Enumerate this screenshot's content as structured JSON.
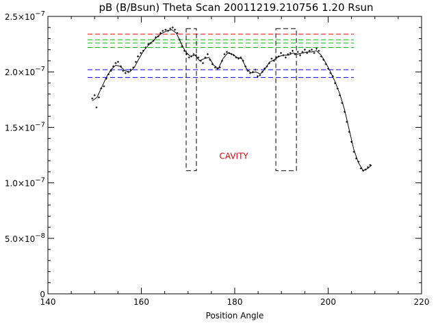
{
  "chart_data": {
    "type": "scatter",
    "title": "pB (B/Bsun) Theta Scan 20011219.210756 1.20 Rsun",
    "xlabel": "Position Angle",
    "ylabel": "",
    "xlim": [
      140,
      220
    ],
    "ylim": [
      0,
      2.5e-07
    ],
    "x_ticks": [
      140,
      160,
      180,
      200,
      220
    ],
    "x_tick_labels": [
      "140",
      "160",
      "180",
      "200",
      "220"
    ],
    "x_minor_step": 5,
    "y_ticks": [
      0,
      5e-08,
      1e-07,
      1.5e-07,
      2e-07,
      2.5e-07
    ],
    "y_tick_labels": [
      {
        "mant": "0",
        "exp": ""
      },
      {
        "mant": "5.0×10",
        "exp": "−8"
      },
      {
        "mant": "1.0×10",
        "exp": "−7"
      },
      {
        "mant": "1.5×10",
        "exp": "−7"
      },
      {
        "mant": "2.0×10",
        "exp": "−7"
      },
      {
        "mant": "2.5×10",
        "exp": "−7"
      }
    ],
    "y_minor_step": 1e-08,
    "grid": false,
    "colors": {
      "axes": "#000000",
      "red": "#ff0000",
      "green": "#00bb00",
      "blue": "#0000ff",
      "annotation": "#dd0000"
    },
    "annotation": {
      "text": "CAVITY",
      "x": 179.8,
      "y": 1.24e-07
    },
    "points": [
      [
        149.5,
        1.76e-07
      ],
      [
        150.0,
        1.79e-07
      ],
      [
        150.4,
        1.68e-07
      ],
      [
        150.9,
        1.77e-07
      ],
      [
        151.4,
        1.85e-07
      ],
      [
        152.0,
        1.87e-07
      ],
      [
        152.5,
        1.94e-07
      ],
      [
        153.0,
        1.98e-07
      ],
      [
        153.5,
        2.01e-07
      ],
      [
        154.0,
        2.05e-07
      ],
      [
        154.5,
        2.08e-07
      ],
      [
        155.0,
        2.09e-07
      ],
      [
        155.6,
        2.05e-07
      ],
      [
        156.1,
        2.01e-07
      ],
      [
        156.6,
        1.99e-07
      ],
      [
        157.2,
        2e-07
      ],
      [
        157.7,
        2.02e-07
      ],
      [
        158.3,
        2.04e-07
      ],
      [
        158.8,
        2.09e-07
      ],
      [
        159.3,
        2.14e-07
      ],
      [
        159.9,
        2.17e-07
      ],
      [
        160.4,
        2.19e-07
      ],
      [
        160.9,
        2.22e-07
      ],
      [
        161.5,
        2.25e-07
      ],
      [
        162.0,
        2.26e-07
      ],
      [
        162.6,
        2.28e-07
      ],
      [
        163.1,
        2.31e-07
      ],
      [
        163.6,
        2.32e-07
      ],
      [
        164.1,
        2.35e-07
      ],
      [
        164.6,
        2.37e-07
      ],
      [
        165.2,
        2.38e-07
      ],
      [
        165.7,
        2.37e-07
      ],
      [
        166.2,
        2.39e-07
      ],
      [
        166.7,
        2.4e-07
      ],
      [
        167.2,
        2.38e-07
      ],
      [
        167.7,
        2.35e-07
      ],
      [
        168.2,
        2.29e-07
      ],
      [
        168.7,
        2.23e-07
      ],
      [
        169.2,
        2.19e-07
      ],
      [
        169.7,
        2.16e-07
      ],
      [
        170.2,
        2.13e-07
      ],
      [
        170.7,
        2.14e-07
      ],
      [
        171.2,
        2.16e-07
      ],
      [
        171.7,
        2.15e-07
      ],
      [
        172.2,
        2.13e-07
      ],
      [
        172.7,
        2.1e-07
      ],
      [
        173.2,
        2.08e-07
      ],
      [
        173.7,
        2.13e-07
      ],
      [
        174.2,
        2.16e-07
      ],
      [
        174.7,
        2.11e-07
      ],
      [
        175.2,
        2.07e-07
      ],
      [
        175.8,
        2.04e-07
      ],
      [
        176.3,
        2.03e-07
      ],
      [
        176.8,
        2.04e-07
      ],
      [
        177.3,
        2.1e-07
      ],
      [
        177.8,
        2.16e-07
      ],
      [
        178.3,
        2.18e-07
      ],
      [
        178.8,
        2.17e-07
      ],
      [
        179.3,
        2.16e-07
      ],
      [
        179.8,
        2.15e-07
      ],
      [
        180.3,
        2.13e-07
      ],
      [
        180.8,
        2.12e-07
      ],
      [
        181.3,
        2.13e-07
      ],
      [
        181.8,
        2.1e-07
      ],
      [
        182.3,
        2.05e-07
      ],
      [
        182.8,
        2.01e-07
      ],
      [
        183.3,
        1.99e-07
      ],
      [
        183.9,
        2e-07
      ],
      [
        184.4,
        2.02e-07
      ],
      [
        184.9,
        1.96e-07
      ],
      [
        185.4,
        1.97e-07
      ],
      [
        185.9,
        2e-07
      ],
      [
        186.4,
        2.03e-07
      ],
      [
        186.9,
        2.05e-07
      ],
      [
        187.4,
        2.08e-07
      ],
      [
        187.9,
        2.12e-07
      ],
      [
        188.4,
        2.1e-07
      ],
      [
        188.9,
        2.13e-07
      ],
      [
        189.4,
        2.14e-07
      ],
      [
        189.9,
        2.17e-07
      ],
      [
        190.4,
        2.15e-07
      ],
      [
        190.9,
        2.13e-07
      ],
      [
        191.4,
        2.16e-07
      ],
      [
        191.9,
        2.17e-07
      ],
      [
        192.4,
        2.19e-07
      ],
      [
        192.9,
        2.16e-07
      ],
      [
        193.5,
        2.18e-07
      ],
      [
        194.0,
        2.15e-07
      ],
      [
        194.5,
        2.18e-07
      ],
      [
        195.0,
        2.2e-07
      ],
      [
        195.5,
        2.17e-07
      ],
      [
        196.0,
        2.19e-07
      ],
      [
        196.5,
        2.2e-07
      ],
      [
        197.0,
        2.17e-07
      ],
      [
        197.5,
        2.21e-07
      ],
      [
        198.0,
        2.19e-07
      ],
      [
        198.5,
        2.14e-07
      ],
      [
        199.0,
        2.11e-07
      ],
      [
        199.5,
        2.07e-07
      ],
      [
        200.0,
        2.03e-07
      ],
      [
        200.5,
        1.99e-07
      ],
      [
        201.0,
        1.96e-07
      ],
      [
        201.5,
        1.9e-07
      ],
      [
        202.0,
        1.85e-07
      ],
      [
        202.5,
        1.79e-07
      ],
      [
        203.0,
        1.72e-07
      ],
      [
        203.5,
        1.64e-07
      ],
      [
        204.0,
        1.55e-07
      ],
      [
        204.5,
        1.46e-07
      ],
      [
        205.0,
        1.37e-07
      ],
      [
        205.5,
        1.28e-07
      ],
      [
        206.0,
        1.22e-07
      ],
      [
        206.5,
        1.19e-07
      ],
      [
        207.0,
        1.13e-07
      ],
      [
        207.5,
        1.11e-07
      ],
      [
        208.0,
        1.12e-07
      ],
      [
        208.5,
        1.14e-07
      ],
      [
        209.0,
        1.16e-07
      ]
    ],
    "fit_line": [
      [
        149.5,
        1.74e-07
      ],
      [
        150.5,
        1.77e-07
      ],
      [
        151.5,
        1.86e-07
      ],
      [
        152.5,
        1.95e-07
      ],
      [
        153.5,
        2.02e-07
      ],
      [
        154.5,
        2.06e-07
      ],
      [
        155.5,
        2.05e-07
      ],
      [
        156.5,
        2.01e-07
      ],
      [
        157.5,
        2e-07
      ],
      [
        158.5,
        2.04e-07
      ],
      [
        159.5,
        2.12e-07
      ],
      [
        160.5,
        2.19e-07
      ],
      [
        161.5,
        2.24e-07
      ],
      [
        162.5,
        2.28e-07
      ],
      [
        163.5,
        2.32e-07
      ],
      [
        164.5,
        2.35e-07
      ],
      [
        165.5,
        2.37e-07
      ],
      [
        166.5,
        2.38e-07
      ],
      [
        167.5,
        2.35e-07
      ],
      [
        168.5,
        2.26e-07
      ],
      [
        169.5,
        2.18e-07
      ],
      [
        170.5,
        2.14e-07
      ],
      [
        171.5,
        2.15e-07
      ],
      [
        172.5,
        2.1e-07
      ],
      [
        173.5,
        2.12e-07
      ],
      [
        174.5,
        2.13e-07
      ],
      [
        175.5,
        2.06e-07
      ],
      [
        176.5,
        2.03e-07
      ],
      [
        177.5,
        2.12e-07
      ],
      [
        178.5,
        2.17e-07
      ],
      [
        179.5,
        2.16e-07
      ],
      [
        180.5,
        2.13e-07
      ],
      [
        181.5,
        2.12e-07
      ],
      [
        182.5,
        2.03e-07
      ],
      [
        183.5,
        1.99e-07
      ],
      [
        184.5,
        2e-07
      ],
      [
        185.5,
        1.98e-07
      ],
      [
        186.5,
        2.03e-07
      ],
      [
        187.5,
        2.09e-07
      ],
      [
        188.5,
        2.11e-07
      ],
      [
        189.5,
        2.14e-07
      ],
      [
        190.5,
        2.15e-07
      ],
      [
        191.5,
        2.15e-07
      ],
      [
        192.5,
        2.17e-07
      ],
      [
        193.5,
        2.16e-07
      ],
      [
        194.5,
        2.17e-07
      ],
      [
        195.5,
        2.18e-07
      ],
      [
        196.5,
        2.18e-07
      ],
      [
        197.5,
        2.19e-07
      ],
      [
        198.5,
        2.15e-07
      ],
      [
        199.5,
        2.08e-07
      ],
      [
        200.5,
        2e-07
      ],
      [
        201.5,
        1.91e-07
      ],
      [
        202.5,
        1.8e-07
      ],
      [
        203.5,
        1.66e-07
      ],
      [
        204.5,
        1.48e-07
      ],
      [
        205.5,
        1.3e-07
      ],
      [
        206.5,
        1.18e-07
      ],
      [
        207.5,
        1.11e-07
      ],
      [
        208.5,
        1.13e-07
      ],
      [
        209.3,
        1.16e-07
      ]
    ],
    "reference_lines": [
      {
        "color": "red",
        "y": 2.34e-07,
        "x_range": [
          148.5,
          205.5
        ]
      },
      {
        "color": "green",
        "y": 2.29e-07,
        "x_range": [
          148.5,
          205.5
        ]
      },
      {
        "color": "green",
        "y": 2.26e-07,
        "x_range": [
          148.5,
          205.5
        ]
      },
      {
        "color": "green",
        "y": 2.22e-07,
        "x_range": [
          148.5,
          205.5
        ]
      },
      {
        "color": "blue",
        "y": 2.02e-07,
        "x_range": [
          148.5,
          205.5
        ]
      },
      {
        "color": "blue",
        "y": 1.95e-07,
        "x_range": [
          148.5,
          205.5
        ]
      }
    ],
    "cavity_boxes": [
      {
        "x_range": [
          169.6,
          171.8
        ],
        "y_range": [
          1.11e-07,
          2.39e-07
        ]
      },
      {
        "x_range": [
          188.8,
          193.2
        ],
        "y_range": [
          1.11e-07,
          2.39e-07
        ]
      }
    ]
  }
}
